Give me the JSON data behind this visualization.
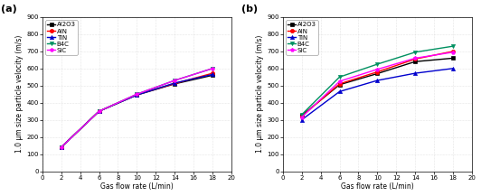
{
  "x": [
    2,
    6,
    10,
    14,
    18
  ],
  "panel_a": {
    "Al2O3": [
      140,
      350,
      445,
      510,
      560
    ],
    "AlN": [
      140,
      350,
      447,
      512,
      572
    ],
    "TiN": [
      140,
      350,
      445,
      515,
      565
    ],
    "B4C": [
      140,
      350,
      450,
      530,
      600
    ],
    "SiC": [
      140,
      350,
      450,
      530,
      600
    ]
  },
  "panel_b": {
    "Al2O3": [
      325,
      505,
      570,
      640,
      660
    ],
    "AlN": [
      320,
      510,
      580,
      655,
      700
    ],
    "TiN": [
      300,
      465,
      530,
      572,
      600
    ],
    "B4C": [
      330,
      550,
      625,
      695,
      730
    ],
    "SiC": [
      315,
      525,
      595,
      660,
      695
    ]
  },
  "colors": {
    "Al2O3": "#000000",
    "AlN": "#ff0000",
    "TiN": "#0000cd",
    "B4C": "#009060",
    "SiC": "#ff00ff"
  },
  "markers": {
    "Al2O3": "s",
    "AlN": "o",
    "TiN": "^",
    "B4C": "v",
    "SiC": "p"
  },
  "ylabel": "1.0 μm size particle velocity (m/s)",
  "xlabel": "Gas flow rate (L/min)",
  "ylim": [
    0,
    900
  ],
  "xlim": [
    0,
    20
  ],
  "yticks": [
    0,
    100,
    200,
    300,
    400,
    500,
    600,
    700,
    800,
    900
  ],
  "xticks": [
    0,
    2,
    4,
    6,
    8,
    10,
    12,
    14,
    16,
    18,
    20
  ],
  "label_a": "(a)",
  "label_b": "(b)",
  "legend_order": [
    "Al2O3",
    "AlN",
    "TiN",
    "B4C",
    "SiC"
  ],
  "markersize": 3,
  "linewidth": 1.0,
  "tick_fontsize": 5,
  "label_fontsize": 5.5,
  "legend_fontsize": 5,
  "panel_label_fontsize": 8
}
